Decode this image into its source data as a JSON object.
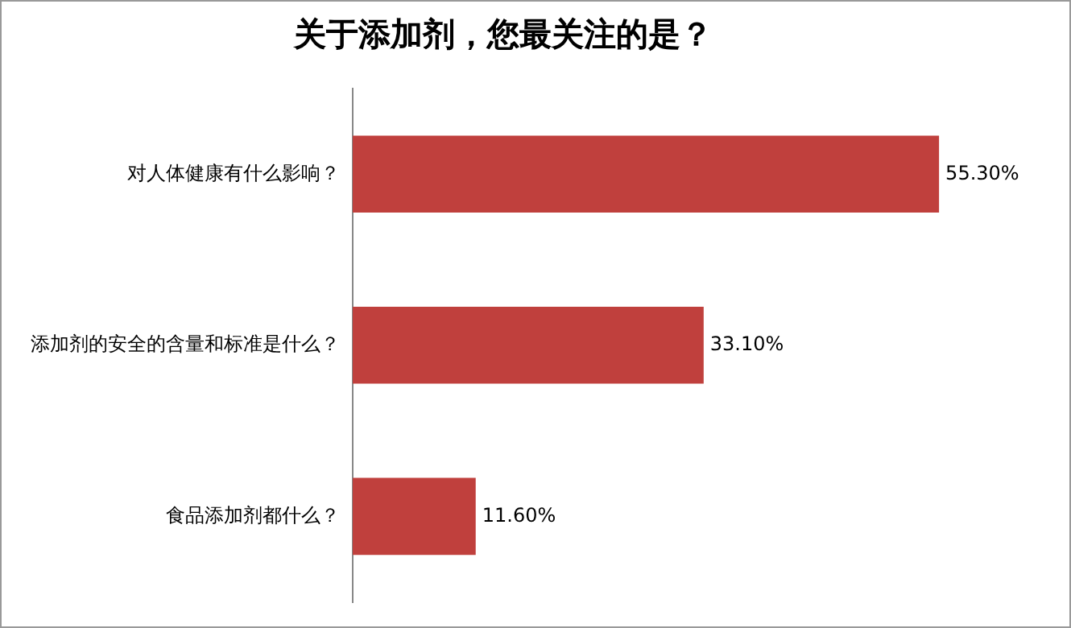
{
  "chart_data": {
    "type": "bar",
    "orientation": "horizontal",
    "title": "关于添加剂，您最关注的是？",
    "categories": [
      "对人体健康有什么影响？",
      "添加剂的安全的含量和标准是什么？",
      "食品添加剂都什么？"
    ],
    "values": [
      55.3,
      33.1,
      11.6
    ],
    "value_labels": [
      "55.30%",
      "33.10%",
      "11.60%"
    ],
    "color": "#c0403d",
    "grid": false,
    "legend": false,
    "tick_labels": "y"
  }
}
